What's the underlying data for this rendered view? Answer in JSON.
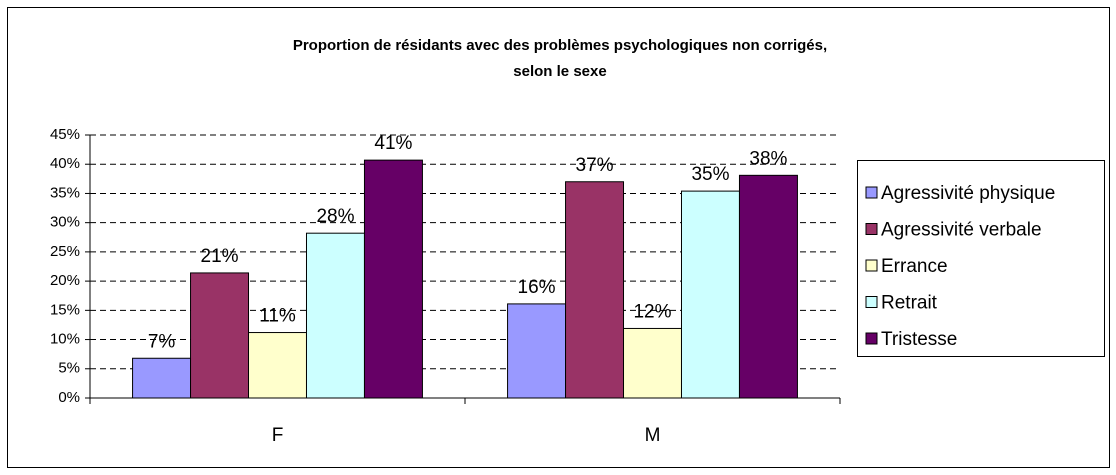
{
  "chart_data": {
    "type": "bar",
    "title": [
      "Proportion de résidants avec des problèmes psychologiques non corrigés,",
      "selon le sexe"
    ],
    "categories": [
      "F",
      "M"
    ],
    "series": [
      {
        "name": "Agressivité physique",
        "color": "#9999ff",
        "values": [
          6.8,
          16.1
        ],
        "value_labels": [
          "7%",
          "16%"
        ]
      },
      {
        "name": "Agressivité verbale",
        "color": "#993366",
        "values": [
          21.4,
          37
        ],
        "value_labels": [
          "21%",
          "37%"
        ]
      },
      {
        "name": "Errance",
        "color": "#ffffcc",
        "values": [
          11.2,
          11.9
        ],
        "value_labels": [
          "11%",
          "12%"
        ]
      },
      {
        "name": "Retrait",
        "color": "#ccffff",
        "values": [
          28.2,
          35.4
        ],
        "value_labels": [
          "28%",
          "35%"
        ]
      },
      {
        "name": "Tristesse",
        "color": "#660066",
        "values": [
          40.7,
          38.1
        ],
        "value_labels": [
          "41%",
          "38%"
        ]
      }
    ],
    "ylim": [
      0,
      45
    ],
    "yticks": [
      {
        "value": 0,
        "label": "0%"
      },
      {
        "value": 5,
        "label": "5%"
      },
      {
        "value": 10,
        "label": "10%"
      },
      {
        "value": 15,
        "label": "15%"
      },
      {
        "value": 20,
        "label": "20%"
      },
      {
        "value": 25,
        "label": "25%"
      },
      {
        "value": 30,
        "label": "30%"
      },
      {
        "value": 35,
        "label": "35%"
      },
      {
        "value": 40,
        "label": "40%"
      },
      {
        "value": 45,
        "label": "45%"
      }
    ],
    "grid": true,
    "legend": "right"
  }
}
